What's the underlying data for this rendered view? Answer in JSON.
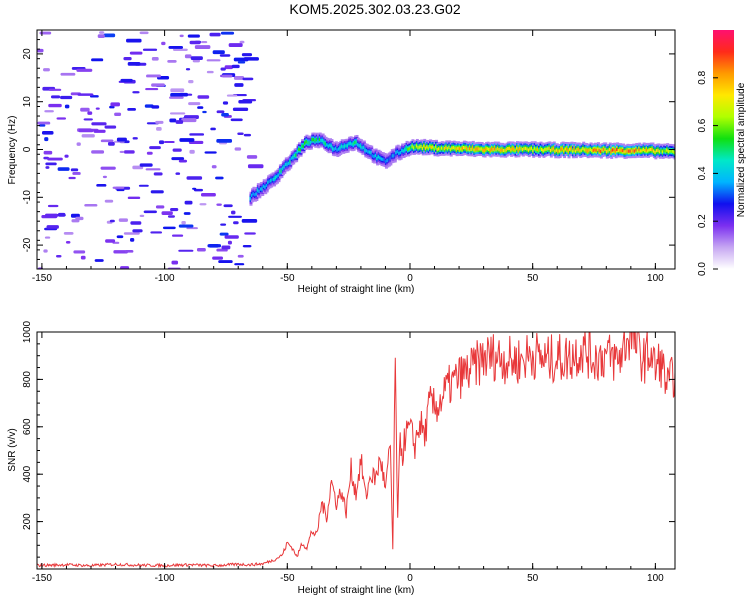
{
  "title": "KOM5.2025.302.03.23.G02",
  "colorbar": {
    "label": "Normalized spectral amplitude",
    "range": [
      0,
      1
    ],
    "ticks": [
      0.0,
      0.2,
      0.4,
      0.6,
      0.8
    ],
    "tick_labels": [
      "0.0",
      "0.2",
      "0.4",
      "0.6",
      "0.8"
    ],
    "colors": [
      "#ffffff",
      "#c6a6f2",
      "#7b2ff0",
      "#1010ee",
      "#00b4ff",
      "#00e8c8",
      "#10e010",
      "#b0ff00",
      "#ffe800",
      "#ff9a00",
      "#ff2a1a",
      "#ff1070"
    ]
  },
  "chart_data": [
    {
      "type": "heatmap",
      "title": "KOM5.2025.302.03.23.G02",
      "xlabel": "Height of straight line (km)",
      "ylabel": "Frequency (Hz)",
      "xlim": [
        -152,
        108
      ],
      "ylim": [
        -25,
        25
      ],
      "x_ticks": [
        -150,
        -100,
        -50,
        0,
        50,
        100
      ],
      "x_tick_labels": [
        "-150",
        "-100",
        "-50",
        "0",
        "50",
        "100"
      ],
      "y_ticks": [
        -20,
        -10,
        0,
        10,
        20
      ],
      "y_tick_labels": [
        "-20",
        "-10",
        "0",
        "10",
        "20"
      ],
      "ridge": {
        "description": "frequency of peak spectral amplitude vs height",
        "x": [
          -65,
          -60,
          -55,
          -52,
          -48,
          -45,
          -42,
          -38,
          -35,
          -30,
          -26,
          -22,
          -18,
          -14,
          -10,
          -6,
          -2,
          0,
          5,
          10,
          20,
          30,
          40,
          50,
          60,
          70,
          80,
          90,
          100,
          108
        ],
        "freq": [
          -10,
          -8,
          -6,
          -4,
          -2,
          0,
          1.5,
          2,
          1.5,
          0,
          1,
          1.5,
          0,
          -1.5,
          -2.5,
          -1,
          0,
          0.5,
          0.5,
          0.3,
          0.2,
          0,
          0,
          0,
          -0.1,
          -0.1,
          -0.2,
          -0.2,
          -0.3,
          -0.5
        ],
        "amplitude": [
          0.35,
          0.38,
          0.4,
          0.45,
          0.42,
          0.5,
          0.5,
          0.48,
          0.45,
          0.4,
          0.45,
          0.45,
          0.4,
          0.38,
          0.35,
          0.35,
          0.45,
          0.6,
          0.65,
          0.68,
          0.72,
          0.75,
          0.72,
          0.7,
          0.72,
          0.75,
          0.8,
          0.82,
          0.7,
          0.6
        ]
      },
      "noise_region": {
        "x_range": [
          -152,
          -65
        ],
        "amplitude_range": [
          0.1,
          0.3
        ]
      }
    },
    {
      "type": "line",
      "xlabel": "Height of straight line (km)",
      "ylabel": "SNR (v/v)",
      "xlim": [
        -152,
        108
      ],
      "ylim": [
        0,
        1000
      ],
      "x_ticks": [
        -150,
        -100,
        -50,
        0,
        50,
        100
      ],
      "x_tick_labels": [
        "-150",
        "-100",
        "-50",
        "0",
        "50",
        "100"
      ],
      "y_ticks": [
        200,
        400,
        600,
        800,
        1000
      ],
      "y_tick_labels": [
        "200",
        "400",
        "600",
        "800",
        "1000"
      ],
      "color": "#e8383a",
      "series": [
        {
          "name": "SNR",
          "x": [
            -152,
            -140,
            -130,
            -120,
            -110,
            -100,
            -90,
            -80,
            -70,
            -65,
            -60,
            -55,
            -52,
            -50,
            -48,
            -46,
            -44,
            -42,
            -40,
            -38,
            -36,
            -34,
            -32,
            -30,
            -28,
            -26,
            -24,
            -22,
            -20,
            -18,
            -16,
            -14,
            -12,
            -10,
            -8,
            -7,
            -6,
            -5,
            -4,
            -3,
            -2,
            0,
            2,
            4,
            6,
            8,
            10,
            12,
            15,
            20,
            25,
            30,
            35,
            40,
            45,
            50,
            55,
            60,
            65,
            70,
            75,
            80,
            85,
            88,
            90,
            92,
            95,
            98,
            100,
            102,
            105,
            108
          ],
          "y": [
            15,
            18,
            14,
            20,
            16,
            15,
            18,
            14,
            20,
            18,
            22,
            40,
            60,
            110,
            90,
            50,
            110,
            90,
            160,
            140,
            280,
            220,
            370,
            280,
            330,
            240,
            420,
            320,
            460,
            300,
            400,
            380,
            470,
            330,
            520,
            80,
            850,
            200,
            560,
            480,
            560,
            590,
            520,
            620,
            560,
            700,
            680,
            700,
            760,
            810,
            840,
            890,
            900,
            880,
            880,
            910,
            880,
            890,
            890,
            930,
            890,
            900,
            880,
            960,
            1000,
            950,
            880,
            920,
            840,
            880,
            770,
            830
          ]
        }
      ]
    }
  ]
}
